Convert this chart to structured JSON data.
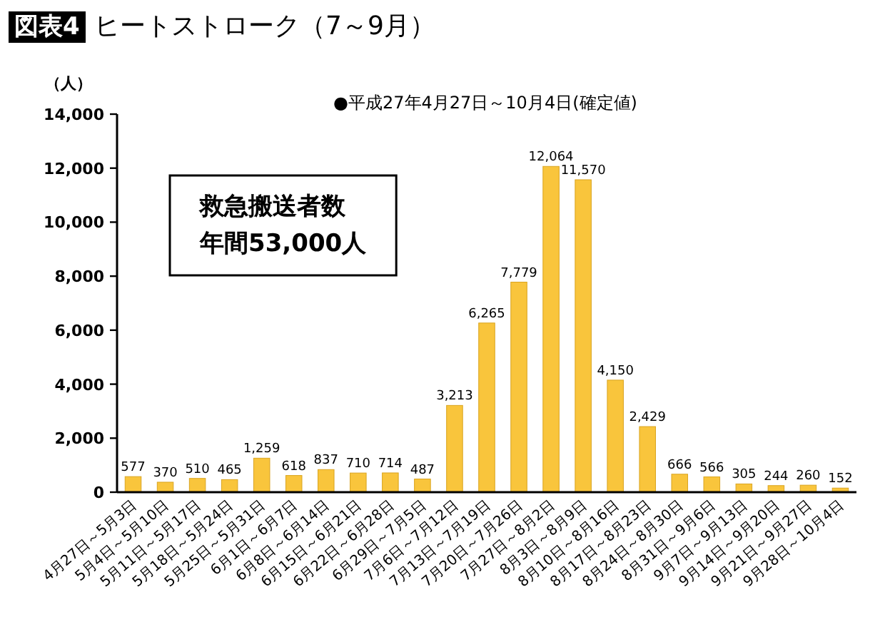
{
  "chart_data": {
    "type": "bar",
    "title": "ヒートストローク（7～9月）",
    "subtitle": "●平成27年4月27日～10月4日(確定値)",
    "ylabel": "（人）",
    "annotations": [
      "図表4",
      "救急搬送者数",
      "年間53,000人"
    ],
    "categories": [
      "4月27日～5月3日",
      "5月4日～5月10日",
      "5月11日～5月17日",
      "5月18日～5月24日",
      "5月25日～5月31日",
      "6月1日～6月7日",
      "6月8日～6月14日",
      "6月15日～6月21日",
      "6月22日～6月28日",
      "6月29日～7月5日",
      "7月6日～7月12日",
      "7月13日～7月19日",
      "7月20日～7月26日",
      "7月27日～8月2日",
      "8月3日～8月9日",
      "8月10日～8月16日",
      "8月17日～8月23日",
      "8月24日～8月30日",
      "8月31日～9月6日",
      "9月7日～9月13日",
      "9月14日～9月20日",
      "9月21日～9月27日",
      "9月28日～10月4日"
    ],
    "values": [
      577,
      370,
      510,
      465,
      1259,
      618,
      837,
      710,
      714,
      487,
      3213,
      6265,
      7779,
      12064,
      11570,
      4150,
      2429,
      666,
      566,
      305,
      244,
      260,
      152
    ],
    "color": "#f9c53c",
    "ylim": [
      0,
      14000
    ],
    "yticks": [
      {
        "value": 0,
        "label": "0"
      },
      {
        "value": 2000,
        "label": "2,000"
      },
      {
        "value": 4000,
        "label": "4,000"
      },
      {
        "value": 6000,
        "label": "6,000"
      },
      {
        "value": 8000,
        "label": "8,000"
      },
      {
        "value": 10000,
        "label": "10,000"
      },
      {
        "value": 12000,
        "label": "12,000"
      },
      {
        "value": 14000,
        "label": "14,000"
      }
    ],
    "value_labels": [
      "577",
      "370",
      "510",
      "465",
      "1,259",
      "618",
      "837",
      "710",
      "714",
      "487",
      "3,213",
      "6,265",
      "7,779",
      "12,064",
      "11,570",
      "4,150",
      "2,429",
      "666",
      "566",
      "305",
      "244",
      "260",
      "152"
    ],
    "grid": false
  }
}
